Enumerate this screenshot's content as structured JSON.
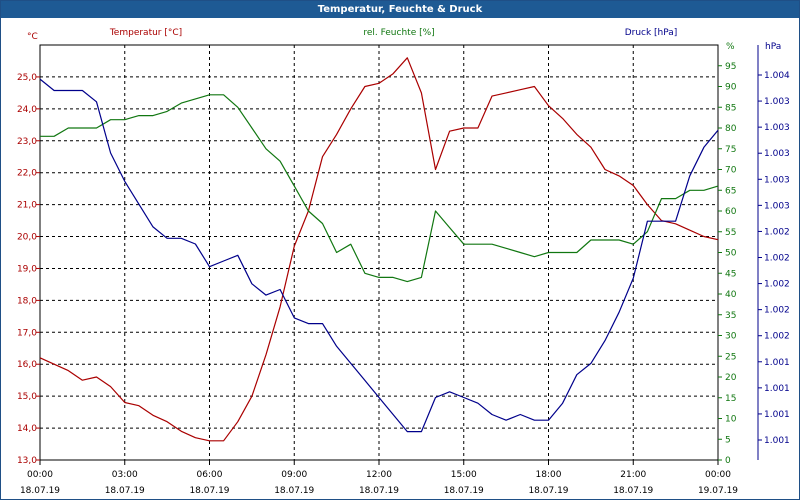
{
  "window": {
    "title": "Temperatur, Feuchte & Druck"
  },
  "chart_data": {
    "type": "line",
    "title": "Temperatur, Feuchte & Druck",
    "grid": true,
    "x_time_ticks": [
      "00:00",
      "03:00",
      "06:00",
      "09:00",
      "12:00",
      "15:00",
      "18:00",
      "21:00",
      "00:00"
    ],
    "x_date_ticks": [
      "18.07.19",
      "18.07.19",
      "18.07.19",
      "18.07.19",
      "18.07.19",
      "18.07.19",
      "18.07.19",
      "18.07.19",
      "19.07.19"
    ],
    "x_range_hours": [
      0,
      24
    ],
    "axes": {
      "temperature": {
        "label": "Temperatur [°C]",
        "unit_label": "°C",
        "color": "#aa0000",
        "range": [
          13.0,
          26.0
        ],
        "tick_labels": [
          "13,0",
          "14,0",
          "15,0",
          "16,0",
          "17,0",
          "18,0",
          "19,0",
          "20,0",
          "21,0",
          "22,0",
          "23,0",
          "24,0",
          "25,0"
        ]
      },
      "humidity": {
        "label": "rel. Feuchte [%]",
        "unit_label": "%",
        "color": "#117711",
        "range": [
          0,
          100
        ],
        "tick_labels": [
          "0",
          "5",
          "10",
          "15",
          "20",
          "25",
          "30",
          "35",
          "40",
          "45",
          "50",
          "55",
          "60",
          "65",
          "70",
          "75",
          "80",
          "85",
          "90",
          "95"
        ]
      },
      "pressure": {
        "label": "Druck [hPa]",
        "unit_label": "hPa",
        "color": "#00008b",
        "tick_labels": [
          "1.001",
          "1.001",
          "1.001",
          "1.001",
          "1.002",
          "1.002",
          "1.002",
          "1.002",
          "1.002",
          "1.003",
          "1.003",
          "1.003",
          "1.003",
          "1.003",
          "1.004"
        ]
      }
    },
    "series": [
      {
        "name": "Temperatur [°C]",
        "axis": "temperature",
        "color": "#aa0000",
        "x": [
          0,
          0.5,
          1,
          1.5,
          2,
          2.5,
          3,
          3.5,
          4,
          4.5,
          5,
          5.5,
          6,
          6.5,
          7,
          7.5,
          8,
          8.5,
          9,
          9.5,
          10,
          10.5,
          11,
          11.5,
          12,
          12.5,
          13,
          13.5,
          14,
          14.5,
          15,
          15.5,
          16,
          16.5,
          17,
          17.5,
          18,
          18.5,
          19,
          19.5,
          20,
          20.5,
          21,
          21.5,
          22,
          22.5,
          23,
          23.5,
          24
        ],
        "values": [
          16.2,
          16.0,
          15.8,
          15.5,
          15.6,
          15.3,
          14.8,
          14.7,
          14.4,
          14.2,
          13.9,
          13.7,
          13.6,
          13.6,
          14.2,
          15.0,
          16.3,
          17.8,
          19.7,
          20.8,
          22.5,
          23.2,
          24.0,
          24.7,
          24.8,
          25.1,
          25.6,
          24.5,
          22.1,
          23.3,
          23.4,
          23.4,
          24.4,
          24.5,
          24.6,
          24.7,
          24.1,
          23.7,
          23.2,
          22.8,
          22.1,
          21.9,
          21.6,
          21.0,
          20.5,
          20.4,
          20.2,
          20.0,
          19.9
        ]
      },
      {
        "name": "rel. Feuchte [%]",
        "axis": "humidity",
        "color": "#117711",
        "x": [
          0,
          0.5,
          1,
          1.5,
          2,
          2.5,
          3,
          3.5,
          4,
          4.5,
          5,
          5.5,
          6,
          6.5,
          7,
          7.5,
          8,
          8.5,
          9,
          9.5,
          10,
          10.5,
          11,
          11.5,
          12,
          12.5,
          13,
          13.5,
          14,
          14.5,
          15,
          15.5,
          16,
          16.5,
          17,
          17.5,
          18,
          18.5,
          19,
          19.5,
          20,
          20.5,
          21,
          21.5,
          22,
          22.5,
          23,
          23.5,
          24
        ],
        "values": [
          78,
          78,
          80,
          80,
          80,
          82,
          82,
          83,
          83,
          84,
          86,
          87,
          88,
          88,
          85,
          80,
          75,
          72,
          66,
          60,
          57,
          50,
          52,
          45,
          44,
          44,
          43,
          44,
          60,
          56,
          52,
          52,
          52,
          51,
          50,
          49,
          50,
          50,
          50,
          53,
          53,
          53,
          52,
          55,
          63,
          63,
          65,
          65,
          66
        ]
      },
      {
        "name": "Druck [hPa]",
        "axis": "pressure",
        "color": "#00008b",
        "x": [
          0,
          0.5,
          1,
          1.5,
          2,
          2.5,
          3,
          3.5,
          4,
          4.5,
          5,
          5.5,
          6,
          6.5,
          7,
          7.5,
          8,
          8.5,
          9,
          9.5,
          10,
          10.5,
          11,
          11.5,
          12,
          12.5,
          13,
          13.5,
          14,
          14.5,
          15,
          15.5,
          16,
          16.5,
          17,
          17.5,
          18,
          18.5,
          19,
          19.5,
          20,
          20.5,
          21,
          21.5,
          22,
          22.5,
          23,
          23.5,
          24
        ],
        "values": [
          1004.05,
          1003.95,
          1003.95,
          1003.95,
          1003.85,
          1003.4,
          1003.15,
          1002.95,
          1002.75,
          1002.65,
          1002.65,
          1002.6,
          1002.4,
          1002.45,
          1002.5,
          1002.25,
          1002.15,
          1002.2,
          1001.95,
          1001.9,
          1001.9,
          1001.7,
          1001.55,
          1001.4,
          1001.25,
          1001.1,
          1000.95,
          1000.95,
          1001.25,
          1001.3,
          1001.25,
          1001.2,
          1001.1,
          1001.05,
          1001.1,
          1001.05,
          1001.05,
          1001.2,
          1001.45,
          1001.55,
          1001.75,
          1002.0,
          1002.3,
          1002.8,
          1002.8,
          1002.8,
          1003.2,
          1003.45,
          1003.6
        ]
      }
    ]
  }
}
